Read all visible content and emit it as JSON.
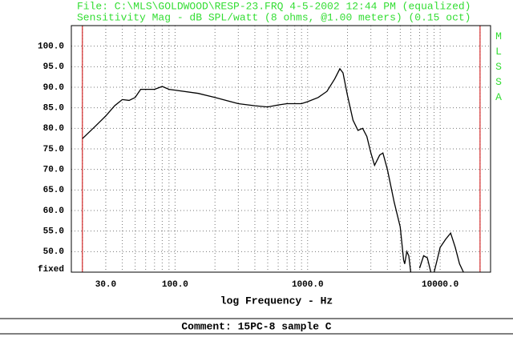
{
  "chart_data": {
    "type": "line",
    "header": "File: C:\\MLS\\GOLDWOOD\\RESP-23.FRQ 4-5-2002 12:44 PM (equalized)",
    "title": "Sensitivity Mag - dB SPL/watt (8 ohms, @1.00 meters) (0.15 oct)",
    "side_label": "MLSSA",
    "xlabel": "log Frequency - Hz",
    "comment": "Comment: 15PC-8 sample C",
    "x_scale": "log",
    "xlim": [
      16.5,
      24000
    ],
    "ylim": [
      45,
      105
    ],
    "xticks": [
      {
        "value": 30,
        "label": "30.0"
      },
      {
        "value": 100,
        "label": "100.0"
      },
      {
        "value": 1000,
        "label": "1000.0"
      },
      {
        "value": 10000,
        "label": "10000.0"
      }
    ],
    "yticks": [
      {
        "value": 45,
        "label": "fixed"
      },
      {
        "value": 50,
        "label": "50.0"
      },
      {
        "value": 55,
        "label": "55.0"
      },
      {
        "value": 60,
        "label": "60.0"
      },
      {
        "value": 65,
        "label": "65.0"
      },
      {
        "value": 70,
        "label": "70.0"
      },
      {
        "value": 75,
        "label": "75.0"
      },
      {
        "value": 80,
        "label": "80.0"
      },
      {
        "value": 85,
        "label": "85.0"
      },
      {
        "value": 90,
        "label": "90.0"
      },
      {
        "value": 95,
        "label": "95.0"
      },
      {
        "value": 100,
        "label": "100.0"
      }
    ],
    "xgrid": [
      20,
      30,
      40,
      50,
      60,
      70,
      80,
      90,
      200,
      300,
      400,
      500,
      600,
      700,
      800,
      900,
      2000,
      3000,
      4000,
      5000,
      6000,
      7000,
      8000,
      9000,
      20000
    ],
    "grid": true,
    "markers": [
      20,
      20000
    ],
    "marker_color": "#cc0000",
    "series": [
      {
        "color": "#000000",
        "x": [
          20,
          25,
          30,
          35,
          40,
          45,
          50,
          55,
          60,
          70,
          80,
          90,
          100,
          150,
          200,
          300,
          400,
          500,
          600,
          700,
          900,
          1000,
          1200,
          1400,
          1600,
          1750,
          1850,
          2000,
          2200,
          2400,
          2600,
          2800,
          3000,
          3200,
          3500,
          3700,
          4000,
          4500,
          5000,
          5300,
          5400,
          5600,
          5800,
          6000,
          6500,
          7000,
          7500,
          8000,
          8500,
          8700,
          9000,
          9500,
          10000,
          11000,
          12000,
          13000,
          14000,
          15000
        ],
        "values": [
          77.5,
          80.5,
          83,
          85.5,
          87,
          86.8,
          87.5,
          89.5,
          89.5,
          89.5,
          90.2,
          89.5,
          89.3,
          88.5,
          87.5,
          86,
          85.5,
          85.2,
          85.7,
          86,
          86,
          86.5,
          87.5,
          89,
          92,
          94.5,
          93.5,
          88,
          82,
          79.5,
          80,
          78,
          74,
          71,
          73.5,
          74,
          70,
          62,
          56,
          48,
          47,
          50,
          49,
          45,
          null,
          46,
          49,
          48.5,
          45,
          null,
          45,
          48,
          51,
          53,
          54.5,
          51,
          47,
          45
        ]
      }
    ]
  }
}
